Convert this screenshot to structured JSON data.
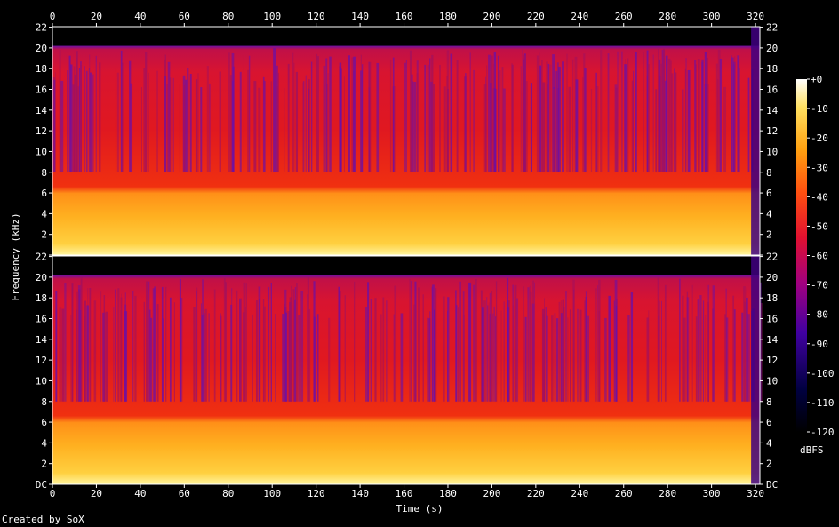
{
  "footer": {
    "credit": "Created by SoX"
  },
  "chart_data": {
    "type": "heatmap",
    "title": "",
    "xlabel": "Time (s)",
    "ylabel": "Frequency (kHz)",
    "colorbar_label": "dBFS",
    "xlim": [
      0,
      322
    ],
    "ylim_khz": [
      0,
      22.05
    ],
    "x_ticks": [
      "0",
      "20",
      "40",
      "60",
      "80",
      "100",
      "120",
      "140",
      "160",
      "180",
      "200",
      "220",
      "240",
      "260",
      "280",
      "300",
      "320"
    ],
    "y_ticks": [
      "DC",
      "2",
      "4",
      "6",
      "8",
      "10",
      "12",
      "14",
      "16",
      "18",
      "20",
      "22"
    ],
    "colorbar_ticks": [
      "+0",
      "-10",
      "-20",
      "-30",
      "-40",
      "-50",
      "-60",
      "-70",
      "-80",
      "-90",
      "-100",
      "-110",
      "-120"
    ],
    "colorbar_range_db": [
      -120,
      0
    ],
    "channels": 2,
    "lowpass_cutoff_khz": 20.2,
    "colors": {
      "background": "#000000",
      "low": "#000000",
      "mid_low": "#400080",
      "mid": "#e0101a",
      "mid_high": "#ff8000",
      "high": "#ffff80",
      "max": "#ffffff"
    }
  }
}
